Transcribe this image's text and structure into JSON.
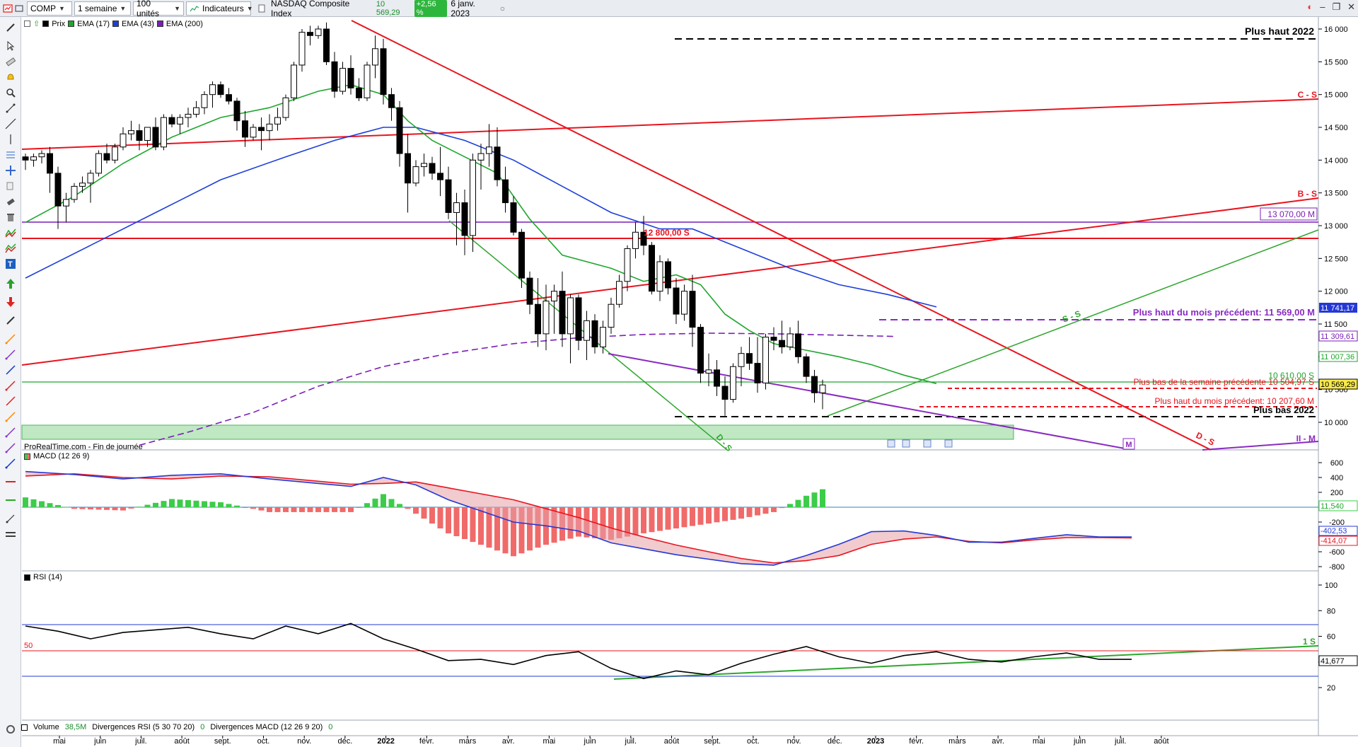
{
  "topbar": {
    "symbol": "COMP",
    "period": "1 semaine",
    "units": "100 unités",
    "indicators": "Indicateurs",
    "instrument": "NASDAQ Composite Index",
    "last": "10 569,29",
    "change": "+2,56 %",
    "date": "6 janv. 2023"
  },
  "legend_price": {
    "prix": "Prix",
    "ema17": "EMA (17)",
    "ema43": "EMA (43)",
    "ema200": "EMA (200)"
  },
  "colors": {
    "ema17": "#1fa62d",
    "ema43": "#1d3fd9",
    "ema200": "#7a1fb5",
    "red": "#e8141e",
    "green_line": "#2fa62e",
    "purple": "#8a2bc1",
    "macd_pos": "#3dcc4a",
    "macd_neg": "#f06a6a"
  },
  "source_note": "ProRealTime.com - Fin de journée",
  "macd_label": "MACD (12 26 9)",
  "rsi_label": "RSI (14)",
  "bottom": {
    "volume": "Volume",
    "volume_val": "38,5M",
    "div_rsi": "Divergences RSI (5 30 70 20)",
    "div_rsi_val": "0",
    "div_macd": "Divergences MACD (12 26 9 20)",
    "div_macd_val": "0"
  },
  "annotations": {
    "plus_haut_2022": "Plus haut 2022",
    "cs": "C - S",
    "bs": "B - S",
    "box_13070": "13 070,00 M",
    "s12800": "12 800,00 S",
    "plus_haut_mois": "Plus haut du mois précédent: 11 569,00 M",
    "s10610": "10 610,00  S",
    "plus_bas_semaine": "Plus bas de la semaine précédente  10 504,97 S",
    "plus_haut_mois2": "Plus haut du mois précédent: 10 207,60 M",
    "plus_bas_2022": "Plus bas 2022",
    "ds_green": "D - S",
    "ds_red": "D - S",
    "ss": "S - S",
    "m_box": "M",
    "ii_m": "II - M",
    "rsi_50": "50",
    "rsi_1s": "1 S"
  },
  "right_axis": {
    "price_ticks": [
      "16 000",
      "15 500",
      "15 000",
      "14 500",
      "14 000",
      "13 500",
      "13 000",
      "12 500",
      "12 000",
      "11 500",
      "11 000",
      "10 500",
      "10 000"
    ],
    "tag_11741": "11 741,17",
    "tag_11309": "11 309,61",
    "tag_11007": "11 007,36",
    "tag_10569": "10 569,29",
    "macd_ticks": [
      "600",
      "400",
      "200",
      "-200",
      "-400",
      "-600",
      "-800"
    ],
    "macd_tag_hist": "11,540",
    "macd_tag_1": "-402,53",
    "macd_tag_2": "-414,07",
    "rsi_ticks": [
      "100",
      "80",
      "60",
      "40",
      "20"
    ],
    "rsi_tag": "41,677"
  },
  "x_axis": [
    "mai",
    "juin",
    "juil.",
    "août",
    "sept.",
    "oct.",
    "nov.",
    "déc.",
    "2022",
    "févr.",
    "mars",
    "avr.",
    "mai",
    "juin",
    "juil.",
    "août",
    "sept.",
    "oct.",
    "nov.",
    "déc.",
    "2023",
    "févr.",
    "mars",
    "avr.",
    "mai",
    "juin",
    "juil.",
    "août"
  ],
  "chart_data": {
    "type": "candlestick",
    "title": "NASDAQ Composite Index",
    "timeframe": "weekly",
    "ylim": [
      9650,
      16150
    ],
    "candles": [
      [
        14050,
        14100,
        13850,
        14000
      ],
      [
        14000,
        14100,
        13900,
        14050
      ],
      [
        14050,
        14150,
        13950,
        14100
      ],
      [
        14100,
        14200,
        13500,
        13800
      ],
      [
        13800,
        13900,
        12950,
        13300
      ],
      [
        13300,
        13500,
        13050,
        13400
      ],
      [
        13400,
        13650,
        13350,
        13600
      ],
      [
        13600,
        13750,
        13500,
        13650
      ],
      [
        13650,
        13850,
        13350,
        13800
      ],
      [
        13800,
        14150,
        13750,
        14100
      ],
      [
        14100,
        14250,
        13950,
        14000
      ],
      [
        14000,
        14250,
        13950,
        14200
      ],
      [
        14200,
        14500,
        14150,
        14400
      ],
      [
        14400,
        14600,
        14300,
        14450
      ],
      [
        14450,
        14550,
        14150,
        14300
      ],
      [
        14300,
        14500,
        14200,
        14500
      ],
      [
        14500,
        14650,
        14150,
        14200
      ],
      [
        14200,
        14700,
        14150,
        14650
      ],
      [
        14650,
        14700,
        14500,
        14550
      ],
      [
        14550,
        14700,
        14400,
        14650
      ],
      [
        14650,
        14800,
        14500,
        14700
      ],
      [
        14700,
        14900,
        14650,
        14800
      ],
      [
        14800,
        15050,
        14700,
        15000
      ],
      [
        15000,
        15200,
        14800,
        15150
      ],
      [
        15150,
        15200,
        14950,
        15000
      ],
      [
        15000,
        15100,
        14850,
        14900
      ],
      [
        14900,
        14950,
        14450,
        14600
      ],
      [
        14600,
        14750,
        14200,
        14350
      ],
      [
        14350,
        14550,
        14300,
        14500
      ],
      [
        14500,
        14650,
        14150,
        14450
      ],
      [
        14450,
        14700,
        14300,
        14550
      ],
      [
        14550,
        14800,
        14450,
        14650
      ],
      [
        14650,
        15000,
        14600,
        14950
      ],
      [
        14950,
        15500,
        14900,
        15450
      ],
      [
        15450,
        16000,
        15350,
        15950
      ],
      [
        15950,
        16050,
        15750,
        15900
      ],
      [
        15900,
        16050,
        15850,
        16000
      ],
      [
        16000,
        16100,
        15450,
        15500
      ],
      [
        15500,
        15650,
        14950,
        15050
      ],
      [
        15050,
        15500,
        15000,
        15400
      ],
      [
        15400,
        15600,
        15000,
        15100
      ],
      [
        15100,
        15250,
        14900,
        14950
      ],
      [
        14950,
        15500,
        14900,
        15450
      ],
      [
        15450,
        15900,
        15250,
        15700
      ],
      [
        15700,
        15850,
        14850,
        15000
      ],
      [
        15000,
        15100,
        14600,
        14800
      ],
      [
        14800,
        14900,
        13900,
        14100
      ],
      [
        14100,
        14400,
        13200,
        13650
      ],
      [
        13650,
        14000,
        13600,
        13900
      ],
      [
        13900,
        14100,
        13750,
        13950
      ],
      [
        13950,
        14050,
        13700,
        13800
      ],
      [
        13800,
        14200,
        13450,
        13700
      ],
      [
        13700,
        13900,
        13100,
        13200
      ],
      [
        13200,
        13500,
        12700,
        13350
      ],
      [
        13350,
        13550,
        12550,
        12850
      ],
      [
        12850,
        14100,
        12600,
        14000
      ],
      [
        14000,
        14250,
        13550,
        14100
      ],
      [
        14100,
        14550,
        13900,
        14200
      ],
      [
        14200,
        14500,
        13600,
        13700
      ],
      [
        13700,
        13900,
        13200,
        13350
      ],
      [
        13350,
        13450,
        12850,
        12900
      ],
      [
        12900,
        12950,
        12050,
        12200
      ],
      [
        12200,
        12300,
        11650,
        11800
      ],
      [
        11800,
        12200,
        11150,
        11350
      ],
      [
        11350,
        12100,
        11100,
        11850
      ],
      [
        11850,
        12100,
        11350,
        12000
      ],
      [
        12000,
        12300,
        11150,
        11350
      ],
      [
        11350,
        11950,
        10900,
        11900
      ],
      [
        11900,
        11950,
        11100,
        11250
      ],
      [
        11250,
        11700,
        10950,
        11550
      ],
      [
        11550,
        11650,
        11050,
        11150
      ],
      [
        11150,
        11550,
        11050,
        11450
      ],
      [
        11450,
        11900,
        11350,
        11800
      ],
      [
        11800,
        12250,
        11750,
        12150
      ],
      [
        12150,
        12700,
        12000,
        12650
      ],
      [
        12650,
        13050,
        12500,
        12900
      ],
      [
        12900,
        13150,
        12550,
        12700
      ],
      [
        12700,
        12750,
        11950,
        12000
      ],
      [
        12000,
        12550,
        11850,
        12450
      ],
      [
        12450,
        12500,
        11950,
        12050
      ],
      [
        12050,
        12200,
        11500,
        11650
      ],
      [
        11650,
        12100,
        11550,
        12000
      ],
      [
        12000,
        12250,
        11150,
        11450
      ],
      [
        11450,
        11500,
        10600,
        10750
      ],
      [
        10750,
        11050,
        10550,
        10800
      ],
      [
        10800,
        10950,
        10400,
        10550
      ],
      [
        10550,
        10700,
        10100,
        10350
      ],
      [
        10350,
        10900,
        10300,
        10850
      ],
      [
        10850,
        11150,
        10550,
        11050
      ],
      [
        11050,
        11300,
        10800,
        10900
      ],
      [
        10900,
        11300,
        10450,
        10600
      ],
      [
        10600,
        11350,
        10500,
        11300
      ],
      [
        11300,
        11450,
        11100,
        11250
      ],
      [
        11250,
        11550,
        11050,
        11150
      ],
      [
        11150,
        11450,
        11100,
        11350
      ],
      [
        11350,
        11550,
        10900,
        11000
      ],
      [
        11000,
        11050,
        10600,
        10700
      ],
      [
        10700,
        10800,
        10300,
        10450
      ],
      [
        10450,
        10650,
        10200,
        10570
      ]
    ],
    "ema17": [
      [
        0,
        13050
      ],
      [
        6,
        13450
      ],
      [
        12,
        13950
      ],
      [
        18,
        14350
      ],
      [
        24,
        14650
      ],
      [
        30,
        14800
      ],
      [
        36,
        15050
      ],
      [
        40,
        15150
      ],
      [
        44,
        15000
      ],
      [
        47,
        14600
      ],
      [
        50,
        14300
      ],
      [
        54,
        14050
      ],
      [
        58,
        13800
      ],
      [
        62,
        13100
      ],
      [
        66,
        12550
      ],
      [
        72,
        12350
      ],
      [
        76,
        12150
      ],
      [
        80,
        12250
      ],
      [
        83,
        12100
      ],
      [
        86,
        11650
      ],
      [
        89,
        11400
      ],
      [
        92,
        11200
      ],
      [
        96,
        11100
      ],
      [
        100,
        11000
      ],
      [
        104,
        10880
      ],
      [
        108,
        10720
      ],
      [
        112,
        10590
      ]
    ],
    "ema43": [
      [
        0,
        12200
      ],
      [
        8,
        12700
      ],
      [
        16,
        13200
      ],
      [
        24,
        13700
      ],
      [
        32,
        14050
      ],
      [
        38,
        14300
      ],
      [
        44,
        14500
      ],
      [
        48,
        14500
      ],
      [
        54,
        14300
      ],
      [
        60,
        14000
      ],
      [
        66,
        13600
      ],
      [
        72,
        13200
      ],
      [
        78,
        12950
      ],
      [
        82,
        12950
      ],
      [
        88,
        12650
      ],
      [
        94,
        12350
      ],
      [
        100,
        12100
      ],
      [
        106,
        11950
      ],
      [
        112,
        11760
      ]
    ],
    "ema200": [
      [
        14,
        9650
      ],
      [
        20,
        9850
      ],
      [
        28,
        10150
      ],
      [
        36,
        10550
      ],
      [
        44,
        10850
      ],
      [
        52,
        11050
      ],
      [
        60,
        11200
      ],
      [
        68,
        11290
      ],
      [
        76,
        11340
      ],
      [
        84,
        11360
      ],
      [
        92,
        11350
      ],
      [
        100,
        11330
      ],
      [
        107,
        11310
      ]
    ],
    "macd": [
      [
        0,
        480,
        420
      ],
      [
        6,
        440,
        450
      ],
      [
        12,
        380,
        400
      ],
      [
        18,
        430,
        380
      ],
      [
        24,
        450,
        420
      ],
      [
        30,
        380,
        410
      ],
      [
        36,
        320,
        350
      ],
      [
        40,
        280,
        310
      ],
      [
        44,
        400,
        320
      ],
      [
        48,
        300,
        340
      ],
      [
        52,
        100,
        260
      ],
      [
        56,
        -50,
        180
      ],
      [
        60,
        -200,
        100
      ],
      [
        64,
        -250,
        -20
      ],
      [
        68,
        -320,
        -140
      ],
      [
        72,
        -480,
        -280
      ],
      [
        76,
        -560,
        -400
      ],
      [
        80,
        -640,
        -510
      ],
      [
        84,
        -700,
        -600
      ],
      [
        88,
        -760,
        -690
      ],
      [
        92,
        -780,
        -750
      ],
      [
        96,
        -650,
        -720
      ],
      [
        100,
        -500,
        -650
      ],
      [
        104,
        -330,
        -500
      ],
      [
        108,
        -320,
        -430
      ],
      [
        112,
        -380,
        -400
      ],
      [
        116,
        -470,
        -460
      ],
      [
        120,
        -470,
        -480
      ],
      [
        124,
        -420,
        -440
      ],
      [
        128,
        -370,
        -410
      ],
      [
        132,
        -400,
        -410
      ],
      [
        136,
        -400,
        -414
      ]
    ],
    "rsi": [
      [
        0,
        68
      ],
      [
        4,
        64
      ],
      [
        8,
        58
      ],
      [
        12,
        63
      ],
      [
        16,
        65
      ],
      [
        20,
        67
      ],
      [
        24,
        62
      ],
      [
        28,
        58
      ],
      [
        32,
        68
      ],
      [
        36,
        62
      ],
      [
        40,
        70
      ],
      [
        44,
        58
      ],
      [
        48,
        50
      ],
      [
        52,
        41
      ],
      [
        56,
        42
      ],
      [
        60,
        38
      ],
      [
        64,
        45
      ],
      [
        68,
        48
      ],
      [
        72,
        35
      ],
      [
        76,
        27
      ],
      [
        80,
        33
      ],
      [
        84,
        30
      ],
      [
        88,
        39
      ],
      [
        92,
        46
      ],
      [
        96,
        52
      ],
      [
        100,
        44
      ],
      [
        104,
        39
      ],
      [
        108,
        45
      ],
      [
        112,
        48
      ],
      [
        116,
        42
      ],
      [
        120,
        40
      ],
      [
        124,
        44
      ],
      [
        128,
        47
      ],
      [
        132,
        42
      ],
      [
        136,
        42
      ]
    ]
  }
}
